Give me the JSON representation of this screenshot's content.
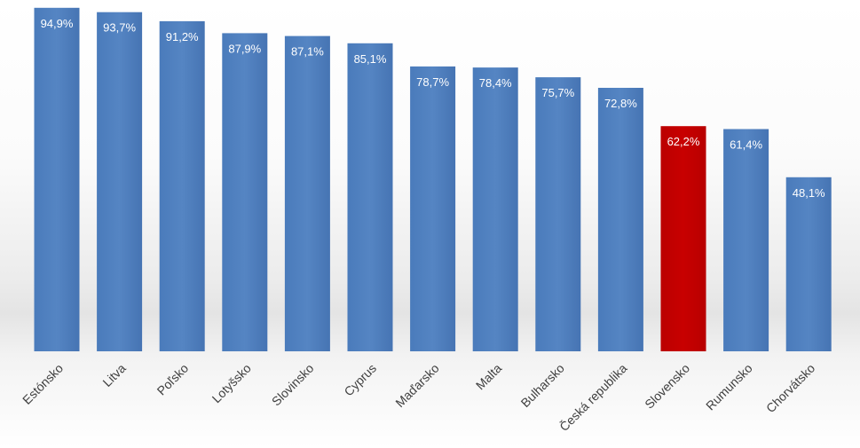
{
  "chart_data": {
    "type": "bar",
    "categories": [
      "Estónsko",
      "Litva",
      "Poľsko",
      "Lotyšsko",
      "Slovinsko",
      "Cyprus",
      "Maďarsko",
      "Malta",
      "Bulharsko",
      "Česká republika",
      "Slovensko",
      "Rumunsko",
      "Chorvátsko"
    ],
    "values": [
      94.9,
      93.7,
      91.2,
      87.9,
      87.1,
      85.1,
      78.7,
      78.4,
      75.7,
      72.8,
      62.2,
      61.4,
      48.1
    ],
    "value_labels": [
      "94,9%",
      "93,7%",
      "91,2%",
      "87,9%",
      "87,1%",
      "85,1%",
      "78,7%",
      "78,4%",
      "75,7%",
      "72,8%",
      "62,2%",
      "61,4%",
      "48,1%"
    ],
    "ylim": [
      0,
      100
    ],
    "grid": false,
    "legend": "none",
    "colors": {
      "default_bar": "#4f81bd",
      "default_bar_dark": "#3d6aa4",
      "highlight_bar": "#c00000",
      "highlight_category": "Slovensko",
      "value_label_text": "#ffffff",
      "tick_label_text": "#404040"
    }
  }
}
